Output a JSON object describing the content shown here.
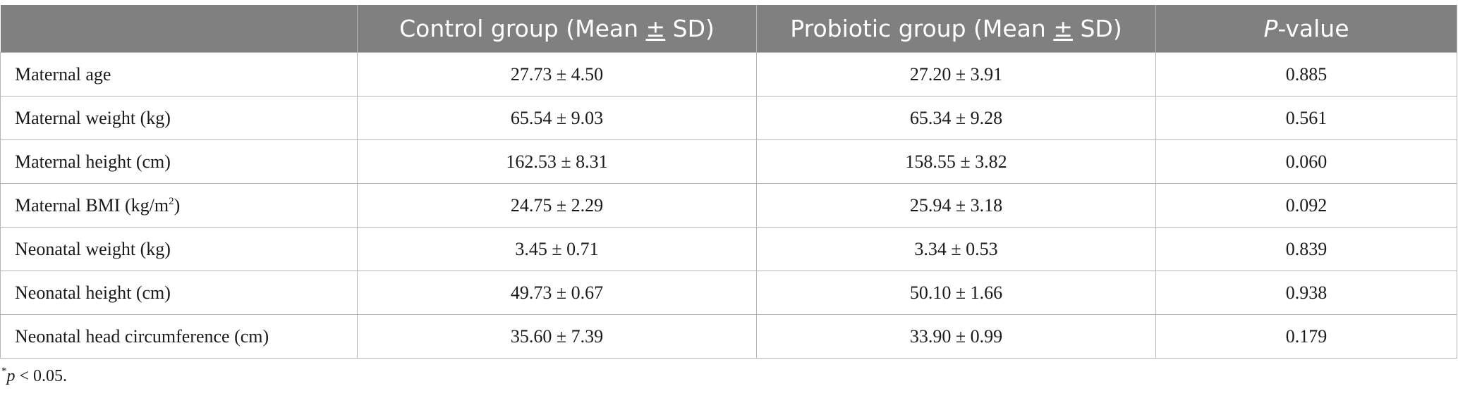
{
  "table": {
    "headers": {
      "label": "",
      "control": {
        "pre": "Control group (Mean ",
        "pm": "±",
        "post": " SD)"
      },
      "probiotic": {
        "pre": "Probiotic group (Mean ",
        "pm": "±",
        "post": " SD)"
      },
      "pvalue": {
        "italic": "P",
        "rest": "-value"
      }
    },
    "rows": [
      {
        "label": "Maternal age",
        "control": "27.73 ± 4.50",
        "probiotic": "27.20 ± 3.91",
        "p": "0.885"
      },
      {
        "label": "Maternal weight (kg)",
        "control": "65.54 ± 9.03",
        "probiotic": "65.34 ± 9.28",
        "p": "0.561"
      },
      {
        "label": "Maternal height (cm)",
        "control": "162.53 ± 8.31",
        "probiotic": "158.55 ± 3.82",
        "p": "0.060"
      },
      {
        "label_pre": "Maternal BMI (kg/m",
        "label_sup": "2",
        "label_post": ")",
        "control": "24.75 ± 2.29",
        "probiotic": "25.94 ± 3.18",
        "p": "0.092"
      },
      {
        "label": "Neonatal weight (kg)",
        "control": "3.45 ± 0.71",
        "probiotic": "3.34 ± 0.53",
        "p": "0.839"
      },
      {
        "label": "Neonatal height (cm)",
        "control": "49.73 ± 0.67",
        "probiotic": "50.10 ± 1.66",
        "p": "0.938"
      },
      {
        "label": "Neonatal head circumference (cm)",
        "control": "35.60 ± 7.39",
        "probiotic": "33.90 ± 0.99",
        "p": "0.179"
      }
    ]
  },
  "footnote": {
    "star": "*",
    "p": "p",
    "rest": " < 0.05."
  },
  "colors": {
    "header_bg": "#808080",
    "header_text": "#ffffff",
    "border": "#b5b5b5"
  }
}
